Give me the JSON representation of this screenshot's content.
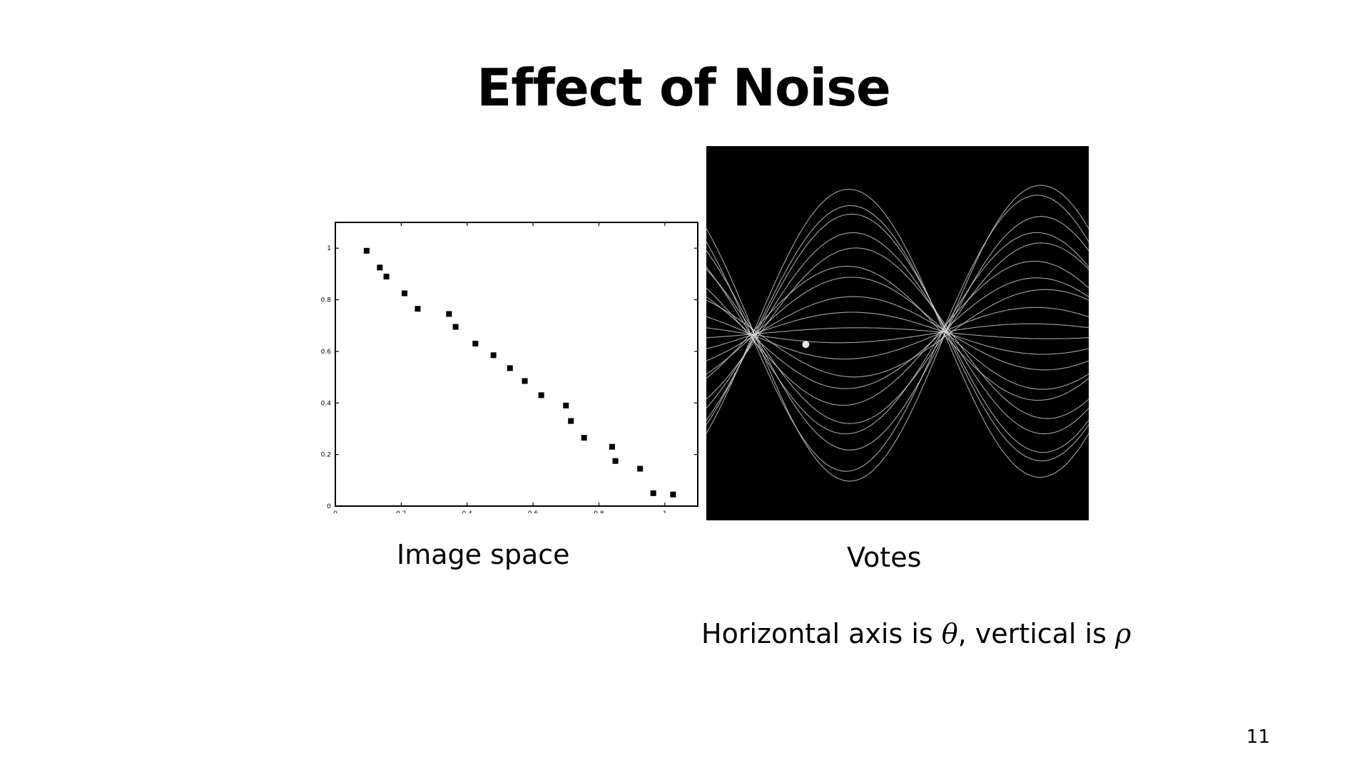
{
  "slide": {
    "title": "Effect of Noise",
    "page_number": "11"
  },
  "captions": {
    "image_space": "Image space",
    "votes": "Votes",
    "axis_note_prefix": "Horizontal axis is ",
    "theta_symbol": "θ",
    "axis_note_middle": ", vertical is ",
    "rho_symbol": "ρ"
  },
  "chart_data": [
    {
      "type": "scatter",
      "title": "",
      "xlabel": "",
      "ylabel": "",
      "xlim": [
        0,
        1.1
      ],
      "ylim": [
        0,
        1.1
      ],
      "x_ticks": [
        0,
        0.2,
        0.4,
        0.6,
        0.8,
        1
      ],
      "x_tick_labels": [
        "0",
        "0.2",
        "0.4",
        "0.6",
        "0.8",
        "1"
      ],
      "y_ticks": [
        0,
        0.2,
        0.4,
        0.6,
        0.8,
        1
      ],
      "y_tick_labels": [
        "0",
        "0.2",
        "0.4",
        "0.6",
        "0.8",
        "1"
      ],
      "grid": false,
      "legend": "none",
      "marker_color": "#000000",
      "points": [
        {
          "x": 0.095,
          "y": 0.99
        },
        {
          "x": 0.135,
          "y": 0.925
        },
        {
          "x": 0.155,
          "y": 0.89
        },
        {
          "x": 0.21,
          "y": 0.825
        },
        {
          "x": 0.25,
          "y": 0.765
        },
        {
          "x": 0.345,
          "y": 0.745
        },
        {
          "x": 0.365,
          "y": 0.695
        },
        {
          "x": 0.425,
          "y": 0.63
        },
        {
          "x": 0.48,
          "y": 0.585
        },
        {
          "x": 0.53,
          "y": 0.535
        },
        {
          "x": 0.575,
          "y": 0.485
        },
        {
          "x": 0.625,
          "y": 0.43
        },
        {
          "x": 0.7,
          "y": 0.39
        },
        {
          "x": 0.715,
          "y": 0.33
        },
        {
          "x": 0.755,
          "y": 0.265
        },
        {
          "x": 0.84,
          "y": 0.23
        },
        {
          "x": 0.85,
          "y": 0.175
        },
        {
          "x": 0.925,
          "y": 0.145
        },
        {
          "x": 0.965,
          "y": 0.05
        },
        {
          "x": 1.025,
          "y": 0.045
        }
      ]
    },
    {
      "type": "heatmap",
      "title": "",
      "xlabel": "",
      "ylabel": "",
      "background": "#000000",
      "curve_color": "#d9d9d9",
      "peak_color": "#ffffff",
      "peak": {
        "theta": 0.26,
        "rho": 0.53
      }
    }
  ]
}
